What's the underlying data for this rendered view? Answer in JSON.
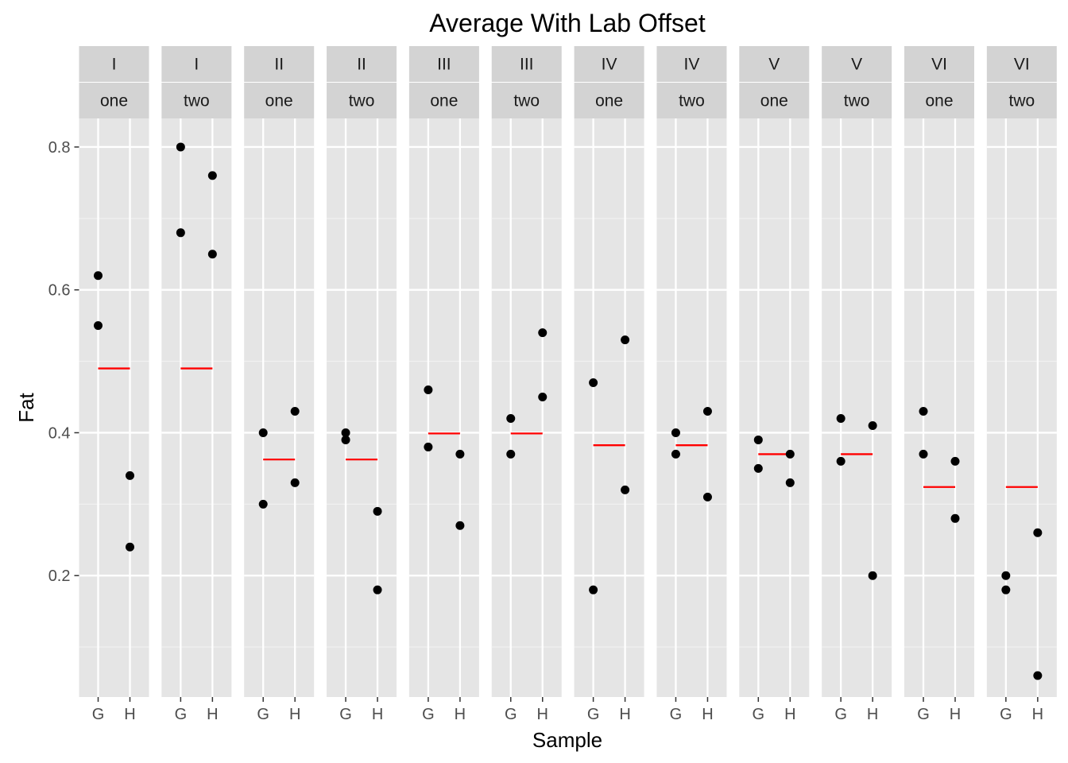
{
  "chart_data": {
    "type": "scatter",
    "title": "Average With Lab Offset",
    "xlabel": "Sample",
    "ylabel": "Fat",
    "ylim": [
      0.03,
      0.84
    ],
    "y_ticks": [
      0.2,
      0.4,
      0.6,
      0.8
    ],
    "y_tick_labels": [
      "0.2",
      "0.4",
      "0.6",
      "0.8"
    ],
    "categories": [
      "G",
      "H"
    ],
    "point_color": "#000000",
    "line_color": "#ff0000",
    "panel_background": "#e5e5e5",
    "strip_background": "#d3d3d3",
    "grid": true,
    "legend": "none",
    "facet_rows": [
      "lab",
      "sample"
    ],
    "panels": [
      {
        "lab": "I",
        "sample": "one",
        "mean": 0.49,
        "points": {
          "G": [
            0.62,
            0.55
          ],
          "H": [
            0.34,
            0.24
          ]
        }
      },
      {
        "lab": "I",
        "sample": "two",
        "mean": 0.49,
        "points": {
          "G": [
            0.8,
            0.68
          ],
          "H": [
            0.76,
            0.65
          ]
        }
      },
      {
        "lab": "II",
        "sample": "one",
        "mean": 0.3625,
        "points": {
          "G": [
            0.4,
            0.3
          ],
          "H": [
            0.43,
            0.33
          ]
        }
      },
      {
        "lab": "II",
        "sample": "two",
        "mean": 0.3625,
        "points": {
          "G": [
            0.4,
            0.39
          ],
          "H": [
            0.29,
            0.18
          ]
        }
      },
      {
        "lab": "III",
        "sample": "one",
        "mean": 0.399,
        "points": {
          "G": [
            0.46,
            0.38
          ],
          "H": [
            0.37,
            0.27
          ]
        }
      },
      {
        "lab": "III",
        "sample": "two",
        "mean": 0.399,
        "points": {
          "G": [
            0.42,
            0.37
          ],
          "H": [
            0.54,
            0.45
          ]
        }
      },
      {
        "lab": "IV",
        "sample": "one",
        "mean": 0.3825,
        "points": {
          "G": [
            0.47,
            0.18
          ],
          "H": [
            0.53,
            0.32
          ]
        }
      },
      {
        "lab": "IV",
        "sample": "two",
        "mean": 0.3825,
        "points": {
          "G": [
            0.4,
            0.37
          ],
          "H": [
            0.43,
            0.31
          ]
        }
      },
      {
        "lab": "V",
        "sample": "one",
        "mean": 0.37,
        "points": {
          "G": [
            0.39,
            0.35
          ],
          "H": [
            0.37,
            0.33
          ]
        }
      },
      {
        "lab": "V",
        "sample": "two",
        "mean": 0.37,
        "points": {
          "G": [
            0.42,
            0.36
          ],
          "H": [
            0.41,
            0.2
          ]
        }
      },
      {
        "lab": "VI",
        "sample": "one",
        "mean": 0.324,
        "points": {
          "G": [
            0.43,
            0.37
          ],
          "H": [
            0.36,
            0.28
          ]
        }
      },
      {
        "lab": "VI",
        "sample": "two",
        "mean": 0.324,
        "points": {
          "G": [
            0.2,
            0.18
          ],
          "H": [
            0.26,
            0.06
          ]
        }
      }
    ]
  }
}
